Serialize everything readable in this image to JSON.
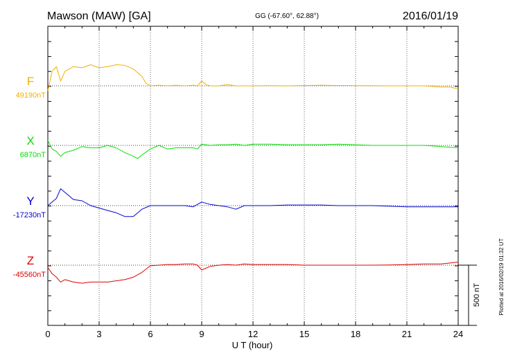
{
  "header": {
    "station": "Mawson (MAW)  [GA]",
    "coords": "GG (-67.60°,  62.88°)",
    "date": "2016/01/19"
  },
  "side_note": "Plotted at 2016/02/19 01:32 UT",
  "scale_label": "500 nT",
  "colors": {
    "F": "#f0b000",
    "X": "#00e000",
    "Y": "#0000d0",
    "Z": "#e00000"
  },
  "chart_data": {
    "type": "line",
    "xlabel": "U T (hour)",
    "xlim": [
      0,
      24
    ],
    "xticks": [
      "0",
      "3",
      "6",
      "9",
      "12",
      "15",
      "18",
      "21",
      "24"
    ],
    "scale_bar_nT": 500,
    "series": [
      {
        "name": "F",
        "baseline_label": "49190nT",
        "baseline_nT": 49190,
        "x": [
          0,
          0.25,
          0.5,
          0.75,
          1,
          1.5,
          2,
          2.5,
          3,
          3.5,
          4,
          4.5,
          5,
          5.5,
          5.75,
          6,
          6.5,
          7,
          7.5,
          8,
          8.5,
          8.75,
          9,
          9.25,
          9.5,
          10,
          10.5,
          11,
          11.5,
          12,
          13,
          14,
          15,
          16,
          17,
          18,
          19,
          20,
          21,
          22,
          22.5,
          23,
          23.5,
          24
        ],
        "y": [
          -40,
          120,
          160,
          40,
          120,
          160,
          150,
          175,
          150,
          160,
          175,
          170,
          140,
          80,
          20,
          0,
          5,
          0,
          5,
          0,
          5,
          0,
          40,
          10,
          0,
          0,
          10,
          0,
          0,
          0,
          2,
          0,
          3,
          5,
          3,
          2,
          2,
          0,
          0,
          0,
          -5,
          -10,
          -10,
          -25
        ]
      },
      {
        "name": "X",
        "baseline_label": "6870nT",
        "baseline_nT": 6870,
        "x": [
          0,
          0.25,
          0.5,
          0.75,
          1,
          1.5,
          2,
          2.5,
          3,
          3.5,
          4,
          4.5,
          5,
          5.25,
          5.5,
          6,
          6.5,
          7,
          7.5,
          8,
          8.5,
          8.75,
          9,
          9.5,
          10,
          10.5,
          11,
          11.5,
          12,
          13,
          14,
          15,
          16,
          17,
          18,
          19,
          20,
          21,
          22,
          23,
          24
        ],
        "y": [
          40,
          -30,
          -50,
          -90,
          -60,
          -40,
          -10,
          -20,
          -20,
          0,
          -20,
          -60,
          -90,
          -110,
          -80,
          -30,
          0,
          -30,
          -20,
          -20,
          -20,
          -30,
          10,
          0,
          5,
          5,
          10,
          0,
          10,
          10,
          5,
          5,
          5,
          10,
          5,
          0,
          0,
          0,
          0,
          -10,
          -20
        ]
      },
      {
        "name": "Y",
        "baseline_label": "-17230nT",
        "baseline_nT": -17230,
        "x": [
          0,
          0.25,
          0.5,
          0.75,
          1,
          1.5,
          2,
          2.5,
          3,
          3.5,
          4,
          4.5,
          5,
          5.5,
          6,
          6.5,
          7,
          7.5,
          8,
          8.5,
          9,
          9.5,
          10,
          10.5,
          11,
          11.5,
          12,
          13,
          14,
          15,
          16,
          17,
          18,
          19,
          20,
          21,
          22,
          23,
          24
        ],
        "y": [
          0,
          30,
          60,
          140,
          110,
          50,
          40,
          0,
          -20,
          -40,
          -60,
          -90,
          -90,
          -30,
          0,
          0,
          0,
          0,
          0,
          -10,
          30,
          10,
          0,
          -10,
          -30,
          0,
          0,
          0,
          5,
          5,
          5,
          0,
          0,
          0,
          -5,
          -10,
          -10,
          -10,
          -10
        ]
      },
      {
        "name": "Z",
        "baseline_label": "-45560nT",
        "baseline_nT": -45560,
        "x": [
          0,
          0.25,
          0.5,
          0.75,
          1,
          1.5,
          2,
          2.5,
          3,
          3.5,
          4,
          4.5,
          5,
          5.5,
          6,
          6.5,
          7,
          7.5,
          8,
          8.5,
          8.75,
          9,
          9.5,
          10,
          10.5,
          11,
          11.5,
          12,
          13,
          14,
          15,
          16,
          17,
          18,
          19,
          20,
          21,
          22,
          23,
          24
        ],
        "y": [
          -20,
          -70,
          -100,
          -140,
          -120,
          -140,
          -150,
          -140,
          -140,
          -140,
          -130,
          -120,
          -100,
          -60,
          -5,
          0,
          5,
          5,
          10,
          10,
          0,
          -40,
          -10,
          0,
          5,
          0,
          10,
          5,
          5,
          5,
          0,
          0,
          0,
          0,
          0,
          2,
          5,
          10,
          10,
          25
        ]
      }
    ]
  }
}
